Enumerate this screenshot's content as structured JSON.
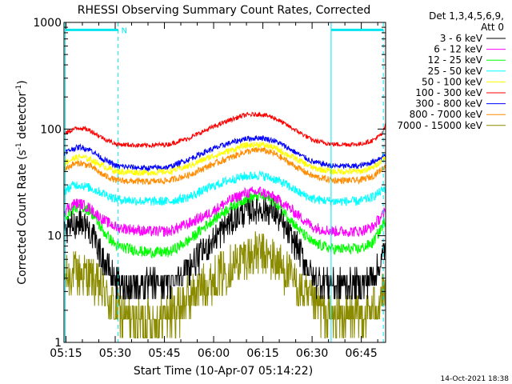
{
  "chart_data": {
    "type": "line",
    "title": "RHESSI Observing Summary Count Rates, Corrected",
    "xlabel": "Start Time (10-Apr-07 05:14:22)",
    "ylabel_pre": "Corrected Count Rate (s",
    "ylabel_sup1": "-1",
    "ylabel_mid": " detector",
    "ylabel_sup2": "-1",
    "ylabel_post": ")",
    "yscale": "log",
    "ylim": [
      1,
      1000
    ],
    "xlim": [
      0,
      98
    ],
    "x_units": "minutes since 05:14:22",
    "xticks": [
      {
        "pos": 0.6,
        "label": "05:15"
      },
      {
        "pos": 15.6,
        "label": "05:30"
      },
      {
        "pos": 30.6,
        "label": "05:45"
      },
      {
        "pos": 45.6,
        "label": "06:00"
      },
      {
        "pos": 60.6,
        "label": "06:15"
      },
      {
        "pos": 75.6,
        "label": "06:30"
      },
      {
        "pos": 90.6,
        "label": "06:45"
      }
    ],
    "yticks": [
      {
        "val": 1,
        "label": "1"
      },
      {
        "val": 10,
        "label": "10"
      },
      {
        "val": 100,
        "label": "100"
      },
      {
        "val": 1000,
        "label": "1000"
      }
    ],
    "legend_header": [
      "Det 1,3,4,5,6,9,",
      "Att 0"
    ],
    "legend_position": "right",
    "footer_timestamp": "14-Oct-2021 18:38",
    "night_flag_label": "N",
    "night_flag_color": "#00e5ee",
    "vlines": [
      {
        "t": 0.4,
        "style": "solid",
        "color": "#00e5ee"
      },
      {
        "t": 16.5,
        "style": "dashed",
        "color": "#00e5ee"
      },
      {
        "t": 81.4,
        "style": "solid",
        "color": "#00e5ee"
      },
      {
        "t": 97.3,
        "style": "dashed",
        "color": "#00e5ee"
      }
    ],
    "flag_bars": [
      {
        "t0": 0.4,
        "t1": 16.5,
        "value": 850
      },
      {
        "t0": 81.4,
        "t1": 97.3,
        "value": 850
      }
    ],
    "series": [
      {
        "name": "3 - 6 keV",
        "color": "#000000",
        "noise": 0.32,
        "quantized": true,
        "quantum": 0.85,
        "points": [
          [
            0,
            10
          ],
          [
            3,
            13
          ],
          [
            5,
            14
          ],
          [
            8,
            11
          ],
          [
            12,
            6
          ],
          [
            15,
            4
          ],
          [
            18,
            3.5
          ],
          [
            25,
            3.5
          ],
          [
            32,
            3.5
          ],
          [
            38,
            5
          ],
          [
            44,
            8
          ],
          [
            50,
            13
          ],
          [
            55,
            17
          ],
          [
            60,
            18
          ],
          [
            64,
            17
          ],
          [
            67,
            12
          ],
          [
            72,
            7
          ],
          [
            76,
            4
          ],
          [
            82,
            3.5
          ],
          [
            88,
            3.5
          ],
          [
            92,
            3.6
          ],
          [
            96,
            5
          ],
          [
            98,
            8
          ]
        ]
      },
      {
        "name": "6 - 12 keV",
        "color": "#ff00ff",
        "noise": 0.12,
        "points": [
          [
            0,
            17
          ],
          [
            3,
            20
          ],
          [
            5,
            20
          ],
          [
            8,
            18
          ],
          [
            12,
            14
          ],
          [
            16,
            12
          ],
          [
            25,
            11
          ],
          [
            32,
            11
          ],
          [
            38,
            13
          ],
          [
            44,
            16
          ],
          [
            50,
            21
          ],
          [
            55,
            25
          ],
          [
            60,
            26
          ],
          [
            64,
            23
          ],
          [
            67,
            20
          ],
          [
            72,
            15
          ],
          [
            76,
            12
          ],
          [
            82,
            11
          ],
          [
            90,
            11
          ],
          [
            94,
            12
          ],
          [
            98,
            17
          ]
        ]
      },
      {
        "name": "12 - 25 keV",
        "color": "#00ff00",
        "noise": 0.12,
        "points": [
          [
            0,
            15
          ],
          [
            3,
            18
          ],
          [
            5,
            19
          ],
          [
            8,
            17
          ],
          [
            12,
            11
          ],
          [
            16,
            8
          ],
          [
            25,
            7
          ],
          [
            32,
            7
          ],
          [
            38,
            9
          ],
          [
            44,
            13
          ],
          [
            50,
            18
          ],
          [
            55,
            22
          ],
          [
            60,
            24
          ],
          [
            64,
            21
          ],
          [
            67,
            17
          ],
          [
            72,
            11
          ],
          [
            76,
            8.5
          ],
          [
            82,
            7.5
          ],
          [
            90,
            7.5
          ],
          [
            94,
            8.5
          ],
          [
            98,
            14
          ]
        ]
      },
      {
        "name": "25 - 50 keV",
        "color": "#00ffff",
        "noise": 0.1,
        "points": [
          [
            0,
            26
          ],
          [
            3,
            30
          ],
          [
            5,
            30
          ],
          [
            8,
            28
          ],
          [
            12,
            25
          ],
          [
            16,
            22
          ],
          [
            25,
            21
          ],
          [
            32,
            21
          ],
          [
            38,
            23
          ],
          [
            44,
            28
          ],
          [
            50,
            33
          ],
          [
            55,
            36
          ],
          [
            60,
            37
          ],
          [
            64,
            34
          ],
          [
            67,
            31
          ],
          [
            72,
            25
          ],
          [
            76,
            22
          ],
          [
            82,
            21
          ],
          [
            90,
            21
          ],
          [
            94,
            23
          ],
          [
            98,
            28
          ]
        ]
      },
      {
        "name": "50 - 100 keV",
        "color": "#ffff00",
        "noise": 0.07,
        "points": [
          [
            0,
            48
          ],
          [
            3,
            53
          ],
          [
            5,
            55
          ],
          [
            8,
            52
          ],
          [
            12,
            45
          ],
          [
            16,
            40
          ],
          [
            25,
            39
          ],
          [
            32,
            40
          ],
          [
            38,
            45
          ],
          [
            44,
            54
          ],
          [
            50,
            62
          ],
          [
            55,
            70
          ],
          [
            60,
            72
          ],
          [
            64,
            67
          ],
          [
            67,
            60
          ],
          [
            72,
            50
          ],
          [
            76,
            43
          ],
          [
            82,
            40
          ],
          [
            90,
            40
          ],
          [
            94,
            43
          ],
          [
            98,
            55
          ]
        ]
      },
      {
        "name": "100 - 300 keV",
        "color": "#ff0000",
        "noise": 0.05,
        "points": [
          [
            0,
            90
          ],
          [
            3,
            100
          ],
          [
            5,
            103
          ],
          [
            8,
            97
          ],
          [
            12,
            82
          ],
          [
            16,
            72
          ],
          [
            25,
            70
          ],
          [
            32,
            72
          ],
          [
            38,
            82
          ],
          [
            44,
            100
          ],
          [
            50,
            120
          ],
          [
            55,
            135
          ],
          [
            60,
            138
          ],
          [
            64,
            128
          ],
          [
            67,
            113
          ],
          [
            72,
            92
          ],
          [
            76,
            78
          ],
          [
            82,
            72
          ],
          [
            90,
            72
          ],
          [
            94,
            78
          ],
          [
            97,
            90
          ],
          [
            98,
            110
          ]
        ]
      },
      {
        "name": "300 - 800 keV",
        "color": "#0000ff",
        "noise": 0.06,
        "points": [
          [
            0,
            60
          ],
          [
            3,
            66
          ],
          [
            5,
            68
          ],
          [
            8,
            64
          ],
          [
            12,
            52
          ],
          [
            16,
            45
          ],
          [
            25,
            43
          ],
          [
            32,
            44
          ],
          [
            38,
            52
          ],
          [
            44,
            63
          ],
          [
            50,
            73
          ],
          [
            55,
            81
          ],
          [
            60,
            83
          ],
          [
            64,
            78
          ],
          [
            67,
            70
          ],
          [
            72,
            57
          ],
          [
            76,
            49
          ],
          [
            82,
            45
          ],
          [
            90,
            45
          ],
          [
            94,
            49
          ],
          [
            98,
            58
          ]
        ]
      },
      {
        "name": "800 - 7000 keV",
        "color": "#ff8c00",
        "noise": 0.07,
        "points": [
          [
            0,
            42
          ],
          [
            3,
            47
          ],
          [
            5,
            48
          ],
          [
            8,
            45
          ],
          [
            12,
            37
          ],
          [
            16,
            33
          ],
          [
            25,
            32
          ],
          [
            32,
            33
          ],
          [
            38,
            37
          ],
          [
            44,
            45
          ],
          [
            50,
            53
          ],
          [
            55,
            61
          ],
          [
            60,
            64
          ],
          [
            64,
            59
          ],
          [
            67,
            52
          ],
          [
            72,
            42
          ],
          [
            76,
            36
          ],
          [
            82,
            33
          ],
          [
            90,
            33
          ],
          [
            94,
            36
          ],
          [
            98,
            45
          ]
        ]
      },
      {
        "name": "7000 - 15000 keV",
        "color": "#8b8b00",
        "noise": 0.5,
        "quantized": true,
        "quantum": 0.55,
        "points": [
          [
            0,
            4
          ],
          [
            3,
            4.5
          ],
          [
            5,
            4.5
          ],
          [
            8,
            4
          ],
          [
            12,
            3
          ],
          [
            16,
            2
          ],
          [
            20,
            1.6
          ],
          [
            28,
            1.6
          ],
          [
            34,
            2
          ],
          [
            40,
            3
          ],
          [
            46,
            4
          ],
          [
            52,
            5.5
          ],
          [
            56,
            6.5
          ],
          [
            60,
            6.8
          ],
          [
            64,
            6
          ],
          [
            68,
            4.5
          ],
          [
            72,
            3
          ],
          [
            76,
            2.2
          ],
          [
            82,
            1.7
          ],
          [
            90,
            1.8
          ],
          [
            94,
            2
          ],
          [
            98,
            3
          ]
        ]
      }
    ]
  }
}
